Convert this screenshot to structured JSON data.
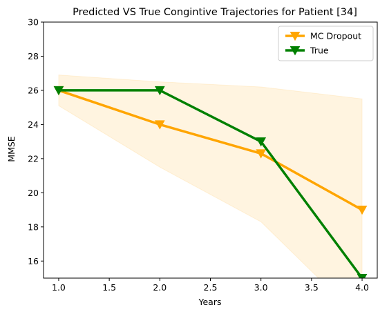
{
  "chart_data": {
    "type": "line",
    "title": "Predicted VS True Congintive Trajectories for Patient [34]",
    "xlabel": "Years",
    "ylabel": "MMSE",
    "xlim": [
      0.85,
      4.15
    ],
    "ylim": [
      15,
      30
    ],
    "x_ticks": [
      1.0,
      1.5,
      2.0,
      2.5,
      3.0,
      3.5,
      4.0
    ],
    "x_tick_labels": [
      "1.0",
      "1.5",
      "2.0",
      "2.5",
      "3.0",
      "3.5",
      "4.0"
    ],
    "y_ticks": [
      16,
      18,
      20,
      22,
      24,
      26,
      28,
      30
    ],
    "y_tick_labels": [
      "16",
      "18",
      "20",
      "22",
      "24",
      "26",
      "28",
      "30"
    ],
    "grid": false,
    "legend_position": "top-right",
    "x": [
      1,
      2,
      3,
      4
    ],
    "series": [
      {
        "name": "MC Dropout",
        "values": [
          26,
          24,
          22.3,
          19
        ],
        "color": "#ffa500",
        "marker": "triangle-down"
      },
      {
        "name": "True",
        "values": [
          26,
          26,
          23,
          15
        ],
        "color": "#008000",
        "marker": "triangle-down"
      }
    ],
    "uncertainty_band": {
      "series": "MC Dropout",
      "color": "#ffa500",
      "opacity": 0.12,
      "lower": [
        25.1,
        21.5,
        18.3,
        12.5
      ],
      "upper": [
        26.9,
        26.5,
        26.2,
        25.5
      ]
    }
  }
}
